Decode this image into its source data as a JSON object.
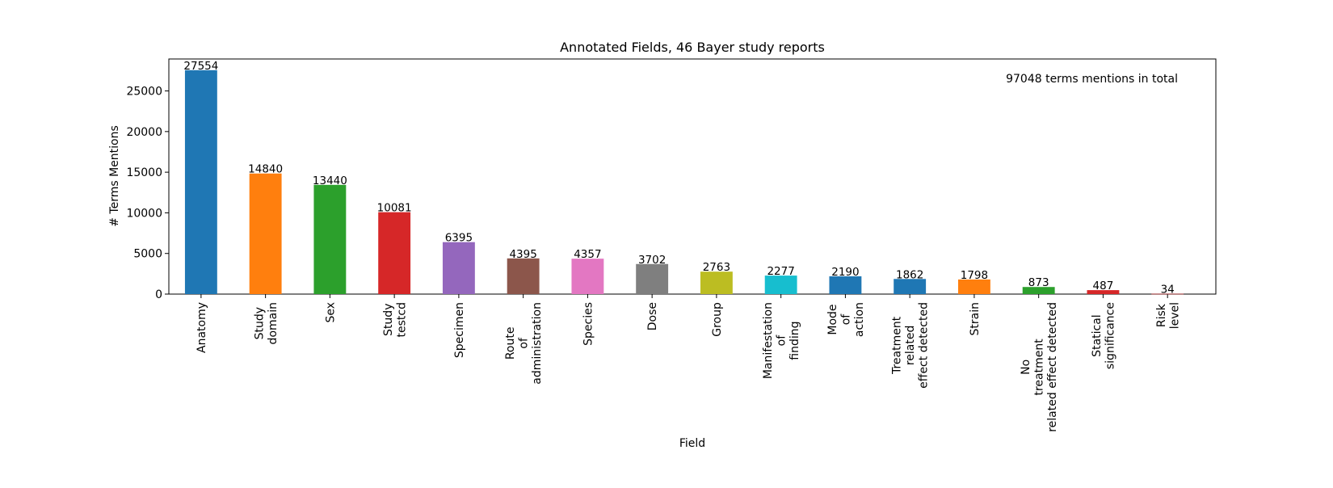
{
  "chart_data": {
    "type": "bar",
    "title": "Annotated Fields, 46 Bayer study reports",
    "xlabel": "Field",
    "ylabel": "# Terms Mentions",
    "annotation": "97048 terms mentions in total",
    "ylim": [
      0,
      28932
    ],
    "yticks": [
      0,
      5000,
      10000,
      15000,
      20000,
      25000
    ],
    "grid": false,
    "legend": "none",
    "categories": [
      "Anatomy",
      "Study\ndomain",
      "Sex",
      "Study\ntestcd",
      "Specimen",
      "Route\nof\nadministration",
      "Species",
      "Dose",
      "Group",
      "Manifestation\nof\nfinding",
      "Mode\nof\naction",
      "Treatment\nrelated\neffect detected",
      "Strain",
      "No\ntreatment\nrelated effect detected",
      "Statical\nsignificance",
      "Risk\nlevel"
    ],
    "values": [
      27554,
      14840,
      13440,
      10081,
      6395,
      4395,
      4357,
      3702,
      2763,
      2277,
      2190,
      1862,
      1798,
      873,
      487,
      34
    ],
    "colors": [
      "#1f77b4",
      "#ff7f0e",
      "#2ca02c",
      "#d62728",
      "#9467bd",
      "#8c564b",
      "#e377c2",
      "#7f7f7f",
      "#bcbd22",
      "#17becf",
      "#1f77b4",
      "#1f77b4",
      "#ff7f0e",
      "#2ca02c",
      "#d62728",
      "#d62728"
    ]
  }
}
